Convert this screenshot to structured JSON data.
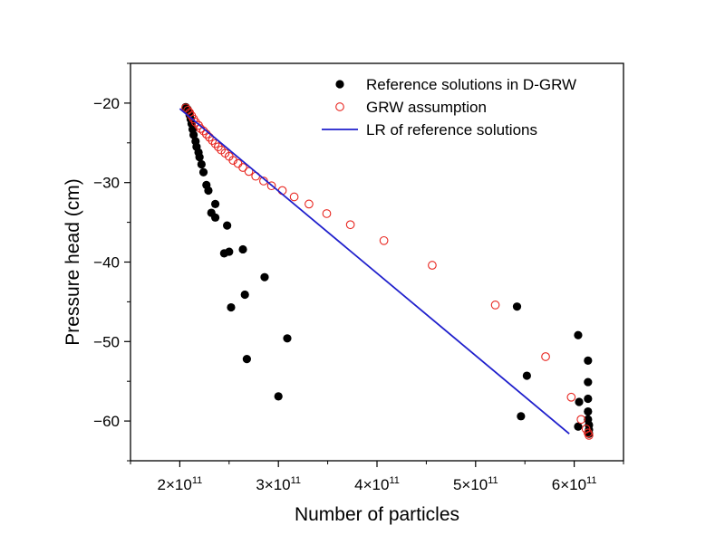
{
  "chart_data": {
    "type": "scatter",
    "title": "",
    "xlabel": "Number of particles",
    "ylabel": "Pressure head (cm)",
    "xlim": [
      150000000000.0,
      650000000000.0
    ],
    "ylim": [
      -65,
      -15
    ],
    "x_ticks": [
      {
        "value": 200000000000.0,
        "mantissa": "2×10",
        "exp": "11"
      },
      {
        "value": 300000000000.0,
        "mantissa": "3×10",
        "exp": "11"
      },
      {
        "value": 400000000000.0,
        "mantissa": "4×10",
        "exp": "11"
      },
      {
        "value": 500000000000.0,
        "mantissa": "5×10",
        "exp": "11"
      },
      {
        "value": 600000000000.0,
        "mantissa": "6×10",
        "exp": "11"
      }
    ],
    "y_ticks": [
      {
        "value": -20,
        "label": "−20"
      },
      {
        "value": -30,
        "label": "−30"
      },
      {
        "value": -40,
        "label": "−40"
      },
      {
        "value": -50,
        "label": "−50"
      },
      {
        "value": -60,
        "label": "−60"
      }
    ],
    "legend_position": "top-right",
    "series": [
      {
        "name": "Reference solutions in D-GRW",
        "marker": "filled-circle",
        "color": "#000000",
        "points": [
          [
            206000000000.0,
            -20.5
          ],
          [
            208000000000.0,
            -20.8
          ],
          [
            209000000000.0,
            -21.1
          ],
          [
            210000000000.0,
            -21.5
          ],
          [
            211000000000.0,
            -22.0
          ],
          [
            212000000000.0,
            -22.6
          ],
          [
            213000000000.0,
            -23.3
          ],
          [
            214000000000.0,
            -24.0
          ],
          [
            216000000000.0,
            -24.8
          ],
          [
            217000000000.0,
            -25.5
          ],
          [
            219000000000.0,
            -26.2
          ],
          [
            220000000000.0,
            -26.8
          ],
          [
            222000000000.0,
            -27.7
          ],
          [
            224000000000.0,
            -28.7
          ],
          [
            227000000000.0,
            -30.3
          ],
          [
            229000000000.0,
            -31.0
          ],
          [
            232000000000.0,
            -33.8
          ],
          [
            236000000000.0,
            -34.4
          ],
          [
            236000000000.0,
            -32.7
          ],
          [
            245000000000.0,
            -38.9
          ],
          [
            248000000000.0,
            -35.4
          ],
          [
            250000000000.0,
            -38.7
          ],
          [
            252000000000.0,
            -45.7
          ],
          [
            264000000000.0,
            -38.4
          ],
          [
            266000000000.0,
            -44.1
          ],
          [
            268000000000.0,
            -52.2
          ],
          [
            286000000000.0,
            -41.9
          ],
          [
            300000000000.0,
            -56.9
          ],
          [
            309000000000.0,
            -49.6
          ],
          [
            542000000000.0,
            -45.6
          ],
          [
            546000000000.0,
            -59.4
          ],
          [
            552000000000.0,
            -54.3
          ],
          [
            604000000000.0,
            -49.2
          ],
          [
            604000000000.0,
            -60.7
          ],
          [
            605000000000.0,
            -57.6
          ],
          [
            614000000000.0,
            -52.4
          ],
          [
            614000000000.0,
            -55.1
          ],
          [
            614000000000.0,
            -57.2
          ],
          [
            614000000000.0,
            -58.8
          ],
          [
            614000000000.0,
            -59.8
          ],
          [
            615000000000.0,
            -60.5
          ],
          [
            615000000000.0,
            -61.1
          ],
          [
            615000000000.0,
            -61.6
          ]
        ]
      },
      {
        "name": "GRW assumption",
        "marker": "open-circle",
        "color": "#e8251f",
        "points": [
          [
            206000000000.0,
            -20.6
          ],
          [
            208000000000.0,
            -20.9
          ],
          [
            210000000000.0,
            -21.2
          ],
          [
            212000000000.0,
            -21.6
          ],
          [
            214000000000.0,
            -22.0
          ],
          [
            216000000000.0,
            -22.4
          ],
          [
            219000000000.0,
            -22.8
          ],
          [
            221000000000.0,
            -23.2
          ],
          [
            224000000000.0,
            -23.5
          ],
          [
            227000000000.0,
            -23.9
          ],
          [
            230000000000.0,
            -24.3
          ],
          [
            233000000000.0,
            -24.7
          ],
          [
            236000000000.0,
            -25.1
          ],
          [
            239000000000.0,
            -25.5
          ],
          [
            242000000000.0,
            -25.9
          ],
          [
            246000000000.0,
            -26.3
          ],
          [
            250000000000.0,
            -26.7
          ],
          [
            254000000000.0,
            -27.2
          ],
          [
            259000000000.0,
            -27.6
          ],
          [
            264000000000.0,
            -28.1
          ],
          [
            270000000000.0,
            -28.6
          ],
          [
            277000000000.0,
            -29.2
          ],
          [
            285000000000.0,
            -29.8
          ],
          [
            293000000000.0,
            -30.4
          ],
          [
            304000000000.0,
            -31.0
          ],
          [
            316000000000.0,
            -31.8
          ],
          [
            331000000000.0,
            -32.7
          ],
          [
            349000000000.0,
            -33.9
          ],
          [
            373000000000.0,
            -35.3
          ],
          [
            407000000000.0,
            -37.3
          ],
          [
            456000000000.0,
            -40.4
          ],
          [
            520000000000.0,
            -45.4
          ],
          [
            571000000000.0,
            -51.9
          ],
          [
            597000000000.0,
            -57.0
          ],
          [
            607000000000.0,
            -59.8
          ],
          [
            612000000000.0,
            -61.0
          ],
          [
            614000000000.0,
            -61.5
          ],
          [
            615000000000.0,
            -61.8
          ]
        ]
      },
      {
        "name": "LR of reference solutions",
        "marker": "line",
        "color": "#1f1fcc",
        "points": [
          [
            200000000000.0,
            -20.7
          ],
          [
            595000000000.0,
            -61.6
          ]
        ]
      }
    ]
  }
}
